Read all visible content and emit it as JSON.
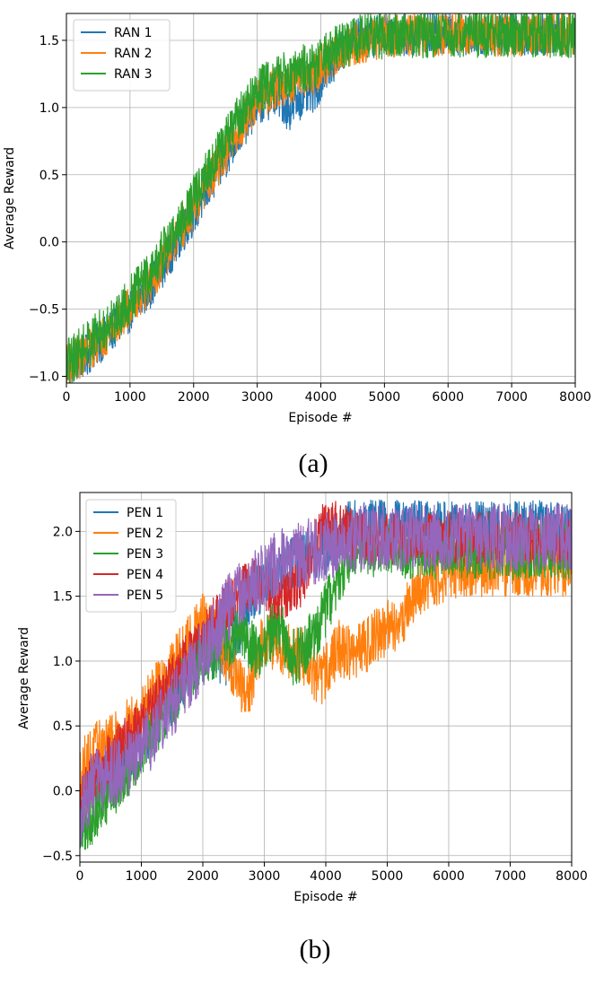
{
  "chart_data": [
    {
      "type": "line",
      "caption": "(a)",
      "xlabel": "Episode #",
      "ylabel": "Average Reward",
      "xlim": [
        0,
        8000
      ],
      "ylim": [
        -1.05,
        1.7
      ],
      "xticks": [
        0,
        1000,
        2000,
        3000,
        4000,
        5000,
        6000,
        7000,
        8000
      ],
      "yticks": [
        -1.0,
        -0.5,
        0.0,
        0.5,
        1.0,
        1.5
      ],
      "ytick_labels": [
        "−1.0",
        "−0.5",
        "0.0",
        "0.5",
        "1.0",
        "1.5"
      ],
      "grid": true,
      "legend_position": "upper-left",
      "series": [
        {
          "name": "RAN 1",
          "color": "#1f77b4",
          "x": [
            0,
            300,
            800,
            1300,
            1800,
            2300,
            2700,
            3000,
            3300,
            3500,
            3700,
            3900,
            4100,
            4200,
            4500,
            5000,
            6000,
            7000,
            8000
          ],
          "y": [
            -0.93,
            -0.85,
            -0.62,
            -0.35,
            0.05,
            0.45,
            0.8,
            1.02,
            1.1,
            0.98,
            1.08,
            1.12,
            1.3,
            1.35,
            1.5,
            1.54,
            1.55,
            1.55,
            1.55
          ],
          "band": 0.16
        },
        {
          "name": "RAN 2",
          "color": "#ff7f0e",
          "x": [
            0,
            300,
            800,
            1300,
            1800,
            2300,
            2700,
            3000,
            3300,
            3600,
            3900,
            4200,
            4500,
            5000,
            6000,
            7000,
            8000
          ],
          "y": [
            -0.92,
            -0.83,
            -0.6,
            -0.32,
            0.08,
            0.5,
            0.83,
            1.05,
            1.15,
            1.2,
            1.25,
            1.38,
            1.47,
            1.53,
            1.54,
            1.54,
            1.54
          ],
          "band": 0.16
        },
        {
          "name": "RAN 3",
          "color": "#2ca02c",
          "x": [
            0,
            300,
            800,
            1300,
            1800,
            2300,
            2700,
            3000,
            3300,
            3600,
            3900,
            4200,
            4500,
            5000,
            6000,
            7000,
            8000
          ],
          "y": [
            -0.9,
            -0.78,
            -0.55,
            -0.25,
            0.15,
            0.58,
            0.92,
            1.12,
            1.22,
            1.27,
            1.32,
            1.42,
            1.5,
            1.54,
            1.55,
            1.55,
            1.55
          ],
          "band": 0.18
        }
      ]
    },
    {
      "type": "line",
      "caption": "(b)",
      "xlabel": "Episode #",
      "ylabel": "Average Reward",
      "xlim": [
        0,
        8000
      ],
      "ylim": [
        -0.55,
        2.3
      ],
      "xticks": [
        0,
        1000,
        2000,
        3000,
        4000,
        5000,
        6000,
        7000,
        8000
      ],
      "yticks": [
        -0.5,
        0.0,
        0.5,
        1.0,
        1.5,
        2.0
      ],
      "ytick_labels": [
        "−0.5",
        "0.0",
        "0.5",
        "1.0",
        "1.5",
        "2.0"
      ],
      "grid": true,
      "legend_position": "upper-left",
      "series": [
        {
          "name": "PEN 1",
          "color": "#1f77b4",
          "x": [
            0,
            200,
            600,
            1000,
            1500,
            2000,
            2400,
            2800,
            3200,
            3600,
            4000,
            4400,
            5000,
            6000,
            7000,
            8000
          ],
          "y": [
            -0.25,
            0.05,
            0.12,
            0.35,
            0.7,
            1.1,
            1.0,
            1.5,
            1.7,
            1.8,
            1.85,
            2.05,
            2.05,
            2.03,
            2.03,
            2.05
          ],
          "band": 0.2
        },
        {
          "name": "PEN 2",
          "color": "#ff7f0e",
          "x": [
            0,
            200,
            600,
            1000,
            1500,
            2000,
            2400,
            2700,
            3000,
            3300,
            3600,
            3900,
            4200,
            4500,
            4800,
            5200,
            5500,
            6000,
            7000,
            8000
          ],
          "y": [
            0.15,
            0.3,
            0.4,
            0.6,
            0.95,
            1.3,
            1.05,
            0.7,
            1.2,
            1.1,
            1.05,
            0.85,
            1.1,
            1.05,
            1.2,
            1.3,
            1.55,
            1.7,
            1.72,
            1.72
          ],
          "band": 0.22
        },
        {
          "name": "PEN 3",
          "color": "#2ca02c",
          "x": [
            0,
            200,
            600,
            1000,
            1500,
            2000,
            2300,
            2600,
            2900,
            3200,
            3500,
            3800,
            4100,
            4400,
            5000,
            6000,
            7000,
            8000
          ],
          "y": [
            -0.3,
            -0.2,
            0.05,
            0.3,
            0.7,
            1.05,
            1.1,
            1.25,
            1.05,
            1.3,
            1.0,
            1.2,
            1.5,
            1.85,
            1.85,
            1.85,
            1.85,
            1.85
          ],
          "band": 0.22
        },
        {
          "name": "PEN 4",
          "color": "#d62728",
          "x": [
            0,
            200,
            600,
            1000,
            1500,
            2000,
            2400,
            2800,
            3200,
            3600,
            3900,
            4200,
            4500,
            5000,
            6000,
            7000,
            8000
          ],
          "y": [
            -0.1,
            0.1,
            0.3,
            0.5,
            0.85,
            1.2,
            1.45,
            1.6,
            1.5,
            1.6,
            2.0,
            2.05,
            1.95,
            1.95,
            1.95,
            1.95,
            1.95
          ],
          "band": 0.2
        },
        {
          "name": "PEN 5",
          "color": "#9467bd",
          "x": [
            0,
            200,
            600,
            1000,
            1500,
            2000,
            2400,
            2800,
            3200,
            3600,
            4000,
            4400,
            5000,
            6000,
            7000,
            8000
          ],
          "y": [
            -0.2,
            0.05,
            0.15,
            0.3,
            0.65,
            1.05,
            1.4,
            1.6,
            1.75,
            1.82,
            1.88,
            1.95,
            1.95,
            1.95,
            1.95,
            1.95
          ],
          "band": 0.26
        }
      ]
    }
  ]
}
